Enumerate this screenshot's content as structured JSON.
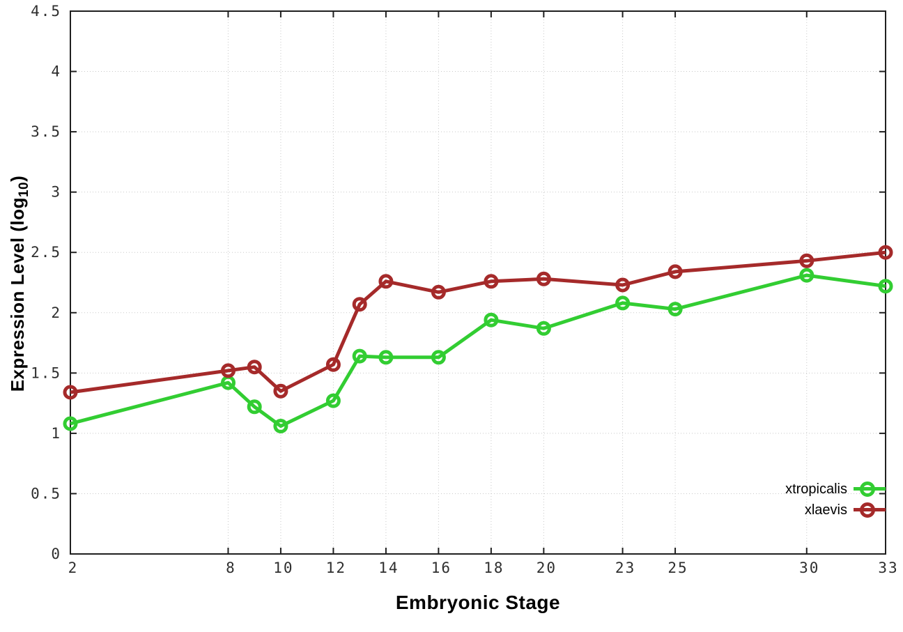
{
  "chart_data": {
    "type": "line",
    "title": "",
    "xlabel": "Embryonic Stage",
    "ylabel": "Expression Level (log10)",
    "ylabel_parts": {
      "main": "Expression Level (log",
      "sub": "10",
      "close": ")"
    },
    "x": [
      2,
      8,
      9,
      10,
      12,
      13,
      14,
      16,
      18,
      20,
      23,
      25,
      30,
      33
    ],
    "series": [
      {
        "name": "xtropicalis",
        "color": "#32CD32",
        "values": [
          1.08,
          1.42,
          1.22,
          1.06,
          1.27,
          1.64,
          1.63,
          1.63,
          1.94,
          1.87,
          2.08,
          2.03,
          2.31,
          2.22
        ]
      },
      {
        "name": "xlaevis",
        "color": "#A52A2A",
        "values": [
          1.34,
          1.52,
          1.55,
          1.35,
          1.57,
          2.07,
          2.26,
          2.17,
          2.26,
          2.28,
          2.23,
          2.34,
          2.43,
          2.5
        ]
      }
    ],
    "xlim": [
      2,
      33
    ],
    "ylim": [
      0,
      4.5
    ],
    "xticks": [
      2,
      8,
      10,
      12,
      14,
      16,
      18,
      20,
      23,
      25,
      30,
      33
    ],
    "yticks": [
      0,
      0.5,
      1,
      1.5,
      2,
      2.5,
      3,
      3.5,
      4,
      4.5
    ],
    "grid": true,
    "grid_style": "dotted",
    "marker": "open-circle",
    "legend_position": "inside-right-bottom",
    "colors": {
      "grid": "#c8c8c8",
      "axis": "#1f1f1f",
      "tick_labels": "#2e2e2e",
      "axis_titles": "#000000"
    }
  }
}
